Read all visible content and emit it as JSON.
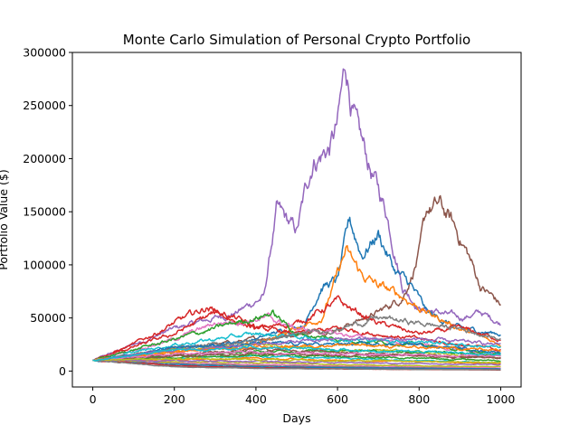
{
  "chart_data": {
    "type": "line",
    "title": "Monte Carlo Simulation of Personal Crypto Portfolio",
    "xlabel": "Days",
    "ylabel": "Portfolio Value ($)",
    "xlim": [
      -50,
      1050
    ],
    "ylim": [
      -15000,
      300000
    ],
    "x_ticks": [
      0,
      200,
      400,
      600,
      800,
      1000
    ],
    "y_ticks": [
      0,
      50000,
      100000,
      150000,
      200000,
      250000,
      300000
    ],
    "grid": false,
    "legend": "none",
    "start_value": 10000,
    "n_days": 1000,
    "series": [
      {
        "color": "#9467bd",
        "keypoints": [
          [
            0,
            10000
          ],
          [
            100,
            25000
          ],
          [
            200,
            40000
          ],
          [
            300,
            50000
          ],
          [
            350,
            55000
          ],
          [
            420,
            70000
          ],
          [
            450,
            150000
          ],
          [
            500,
            130000
          ],
          [
            540,
            200000
          ],
          [
            580,
            210000
          ],
          [
            600,
            230000
          ],
          [
            620,
            286000
          ],
          [
            650,
            220000
          ],
          [
            700,
            170000
          ],
          [
            720,
            150000
          ],
          [
            760,
            80000
          ],
          [
            800,
            60000
          ],
          [
            850,
            55000
          ],
          [
            900,
            50000
          ],
          [
            950,
            55000
          ],
          [
            1000,
            45000
          ]
        ]
      },
      {
        "color": "#8c564b",
        "keypoints": [
          [
            0,
            10000
          ],
          [
            200,
            20000
          ],
          [
            400,
            30000
          ],
          [
            600,
            40000
          ],
          [
            700,
            55000
          ],
          [
            760,
            70000
          ],
          [
            800,
            110000
          ],
          [
            820,
            150000
          ],
          [
            850,
            155000
          ],
          [
            880,
            140000
          ],
          [
            920,
            110000
          ],
          [
            950,
            80000
          ],
          [
            980,
            70000
          ],
          [
            1000,
            62000
          ]
        ]
      },
      {
        "color": "#1f77b4",
        "keypoints": [
          [
            0,
            10000
          ],
          [
            200,
            20000
          ],
          [
            400,
            30000
          ],
          [
            520,
            45000
          ],
          [
            560,
            80000
          ],
          [
            600,
            85000
          ],
          [
            630,
            140000
          ],
          [
            660,
            110000
          ],
          [
            700,
            130000
          ],
          [
            740,
            95000
          ],
          [
            780,
            80000
          ],
          [
            820,
            55000
          ],
          [
            900,
            40000
          ],
          [
            1000,
            35000
          ]
        ]
      },
      {
        "color": "#ff7f0e",
        "keypoints": [
          [
            0,
            10000
          ],
          [
            200,
            18000
          ],
          [
            400,
            25000
          ],
          [
            560,
            50000
          ],
          [
            600,
            90000
          ],
          [
            620,
            112000
          ],
          [
            660,
            90000
          ],
          [
            700,
            80000
          ],
          [
            760,
            70000
          ],
          [
            820,
            55000
          ],
          [
            900,
            40000
          ],
          [
            1000,
            25000
          ]
        ]
      },
      {
        "color": "#d62728",
        "keypoints": [
          [
            0,
            10000
          ],
          [
            100,
            25000
          ],
          [
            200,
            45000
          ],
          [
            280,
            60000
          ],
          [
            350,
            50000
          ],
          [
            400,
            40000
          ],
          [
            500,
            45000
          ],
          [
            600,
            65000
          ],
          [
            650,
            55000
          ],
          [
            700,
            45000
          ],
          [
            800,
            35000
          ],
          [
            900,
            40000
          ],
          [
            1000,
            30000
          ]
        ]
      },
      {
        "color": "#d62728",
        "keypoints": [
          [
            0,
            10000
          ],
          [
            200,
            35000
          ],
          [
            300,
            55000
          ],
          [
            400,
            40000
          ],
          [
            500,
            35000
          ],
          [
            600,
            40000
          ],
          [
            800,
            30000
          ],
          [
            1000,
            20000
          ]
        ]
      },
      {
        "color": "#e377c2",
        "keypoints": [
          [
            0,
            10000
          ],
          [
            200,
            30000
          ],
          [
            300,
            45000
          ],
          [
            430,
            50000
          ],
          [
            500,
            40000
          ],
          [
            600,
            35000
          ],
          [
            800,
            25000
          ],
          [
            1000,
            15000
          ]
        ]
      },
      {
        "color": "#2ca02c",
        "keypoints": [
          [
            0,
            10000
          ],
          [
            200,
            30000
          ],
          [
            300,
            40000
          ],
          [
            440,
            55000
          ],
          [
            500,
            35000
          ],
          [
            600,
            30000
          ],
          [
            800,
            25000
          ],
          [
            1000,
            15000
          ]
        ]
      },
      {
        "color": "#17becf",
        "keypoints": [
          [
            0,
            10000
          ],
          [
            200,
            25000
          ],
          [
            400,
            35000
          ],
          [
            600,
            30000
          ],
          [
            800,
            28000
          ],
          [
            1000,
            22000
          ]
        ]
      },
      {
        "color": "#bcbd22",
        "keypoints": [
          [
            0,
            10000
          ],
          [
            200,
            20000
          ],
          [
            400,
            25000
          ],
          [
            600,
            20000
          ],
          [
            800,
            18000
          ],
          [
            1000,
            12000
          ]
        ]
      },
      {
        "color": "#7f7f7f",
        "keypoints": [
          [
            0,
            10000
          ],
          [
            200,
            22000
          ],
          [
            400,
            28000
          ],
          [
            600,
            40000
          ],
          [
            700,
            50000
          ],
          [
            800,
            45000
          ],
          [
            900,
            40000
          ],
          [
            1000,
            30000
          ]
        ]
      },
      {
        "color": "#1f77b4",
        "keypoints": [
          [
            0,
            10000
          ],
          [
            200,
            22000
          ],
          [
            400,
            26000
          ],
          [
            600,
            25000
          ],
          [
            800,
            25000
          ],
          [
            1000,
            18000
          ]
        ]
      },
      {
        "color": "#ff7f0e",
        "keypoints": [
          [
            0,
            10000
          ],
          [
            200,
            18000
          ],
          [
            400,
            22000
          ],
          [
            600,
            25000
          ],
          [
            800,
            22000
          ],
          [
            1000,
            20000
          ]
        ]
      },
      {
        "color": "#2ca02c",
        "keypoints": [
          [
            0,
            10000
          ],
          [
            200,
            15000
          ],
          [
            400,
            18000
          ],
          [
            600,
            20000
          ],
          [
            800,
            18000
          ],
          [
            1000,
            15000
          ]
        ]
      },
      {
        "color": "#9467bd",
        "keypoints": [
          [
            0,
            10000
          ],
          [
            200,
            20000
          ],
          [
            400,
            25000
          ],
          [
            600,
            30000
          ],
          [
            800,
            30000
          ],
          [
            1000,
            25000
          ]
        ]
      },
      {
        "color": "#8c564b",
        "keypoints": [
          [
            0,
            10000
          ],
          [
            200,
            15000
          ],
          [
            400,
            20000
          ],
          [
            600,
            18000
          ],
          [
            800,
            15000
          ],
          [
            1000,
            12000
          ]
        ]
      },
      {
        "color": "#e377c2",
        "keypoints": [
          [
            0,
            10000
          ],
          [
            200,
            8000
          ],
          [
            400,
            6000
          ],
          [
            600,
            5000
          ],
          [
            800,
            4000
          ],
          [
            1000,
            3000
          ]
        ]
      },
      {
        "color": "#7f7f7f",
        "keypoints": [
          [
            0,
            10000
          ],
          [
            200,
            7000
          ],
          [
            400,
            5000
          ],
          [
            600,
            4000
          ],
          [
            800,
            3000
          ],
          [
            1000,
            2000
          ]
        ]
      },
      {
        "color": "#bcbd22",
        "keypoints": [
          [
            0,
            10000
          ],
          [
            200,
            9000
          ],
          [
            400,
            8000
          ],
          [
            600,
            6000
          ],
          [
            800,
            5000
          ],
          [
            1000,
            4000
          ]
        ]
      },
      {
        "color": "#17becf",
        "keypoints": [
          [
            0,
            10000
          ],
          [
            200,
            12000
          ],
          [
            400,
            14000
          ],
          [
            600,
            12000
          ],
          [
            800,
            10000
          ],
          [
            1000,
            8000
          ]
        ]
      },
      {
        "color": "#1f77b4",
        "keypoints": [
          [
            0,
            10000
          ],
          [
            200,
            6000
          ],
          [
            400,
            4000
          ],
          [
            600,
            3000
          ],
          [
            800,
            2500
          ],
          [
            1000,
            2000
          ]
        ]
      },
      {
        "color": "#ff7f0e",
        "keypoints": [
          [
            0,
            10000
          ],
          [
            200,
            11000
          ],
          [
            400,
            12000
          ],
          [
            600,
            10000
          ],
          [
            800,
            9000
          ],
          [
            1000,
            7000
          ]
        ]
      },
      {
        "color": "#2ca02c",
        "keypoints": [
          [
            0,
            10000
          ],
          [
            200,
            13000
          ],
          [
            400,
            15000
          ],
          [
            600,
            14000
          ],
          [
            800,
            12000
          ],
          [
            1000,
            10000
          ]
        ]
      },
      {
        "color": "#d62728",
        "keypoints": [
          [
            0,
            10000
          ],
          [
            200,
            5000
          ],
          [
            400,
            3000
          ],
          [
            600,
            2000
          ],
          [
            800,
            1500
          ],
          [
            1000,
            1000
          ]
        ]
      },
      {
        "color": "#9467bd",
        "keypoints": [
          [
            0,
            10000
          ],
          [
            200,
            10000
          ],
          [
            400,
            9000
          ],
          [
            600,
            8000
          ],
          [
            800,
            7000
          ],
          [
            1000,
            6000
          ]
        ]
      },
      {
        "color": "#8c564b",
        "keypoints": [
          [
            0,
            10000
          ],
          [
            200,
            14000
          ],
          [
            400,
            16000
          ],
          [
            600,
            15000
          ],
          [
            800,
            14000
          ],
          [
            1000,
            12000
          ]
        ]
      },
      {
        "color": "#e377c2",
        "keypoints": [
          [
            0,
            10000
          ],
          [
            200,
            16000
          ],
          [
            400,
            18000
          ],
          [
            600,
            16000
          ],
          [
            800,
            15000
          ],
          [
            1000,
            14000
          ]
        ]
      },
      {
        "color": "#7f7f7f",
        "keypoints": [
          [
            0,
            10000
          ],
          [
            200,
            4000
          ],
          [
            400,
            2500
          ],
          [
            600,
            2000
          ],
          [
            800,
            1500
          ],
          [
            1000,
            1200
          ]
        ]
      },
      {
        "color": "#bcbd22",
        "keypoints": [
          [
            0,
            10000
          ],
          [
            200,
            12000
          ],
          [
            400,
            11000
          ],
          [
            600,
            10000
          ],
          [
            800,
            9000
          ],
          [
            1000,
            8000
          ]
        ]
      },
      {
        "color": "#17becf",
        "keypoints": [
          [
            0,
            10000
          ],
          [
            200,
            20000
          ],
          [
            400,
            22000
          ],
          [
            600,
            20000
          ],
          [
            800,
            18000
          ],
          [
            1000,
            16000
          ]
        ]
      }
    ]
  }
}
